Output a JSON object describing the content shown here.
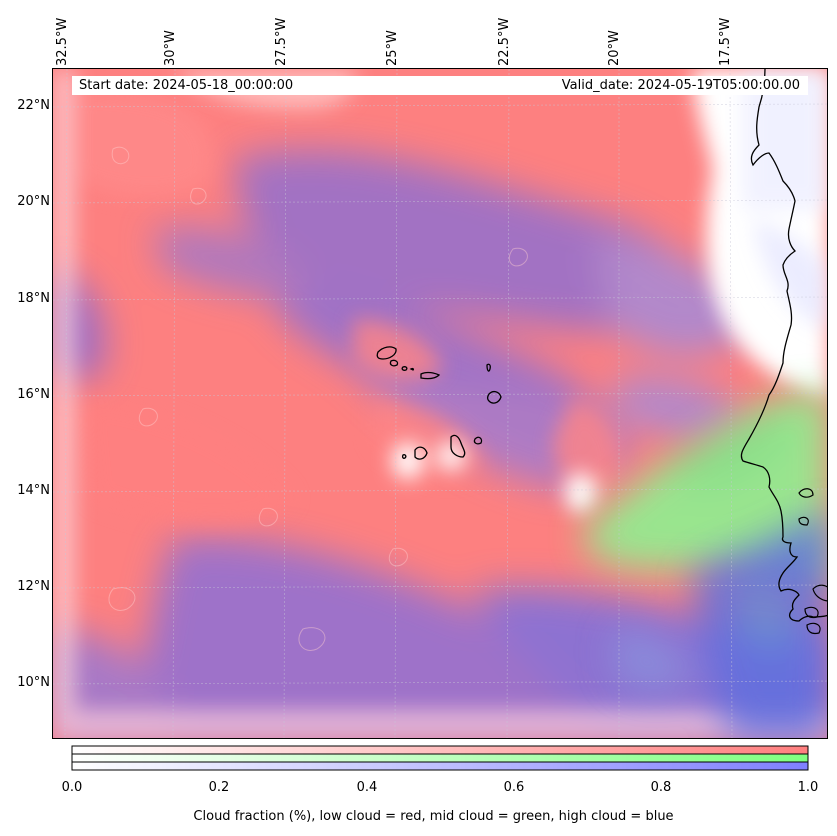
{
  "header": {
    "start_date": "Start date: 2024-05-18_00:00:00",
    "valid_date": "Valid_date: 2024-05-19T05:00:00.00"
  },
  "axes": {
    "longitude_labels": [
      "32.5°W",
      "30°W",
      "27.5°W",
      "25°W",
      "22.5°W",
      "20°W",
      "17.5°W"
    ],
    "latitude_labels": [
      "22°N",
      "20°N",
      "18°N",
      "16°N",
      "14°N",
      "12°N",
      "10°N"
    ]
  },
  "colorbar": {
    "ticks": [
      "0.0",
      "0.2",
      "0.4",
      "0.6",
      "0.8",
      "1.0"
    ],
    "title": "Cloud fraction (%), low cloud = red, mid cloud = green, high cloud = blue",
    "colors": {
      "low": "#ff7f7f",
      "mid": "#7fff7f",
      "high": "#7f7fff"
    }
  },
  "map_colors": {
    "low_cloud": "#fe7e7e",
    "high_cloud": "#8f70d6",
    "mid_cloud": "#88f088",
    "clear": "#ffffff",
    "coast": "#000000"
  }
}
